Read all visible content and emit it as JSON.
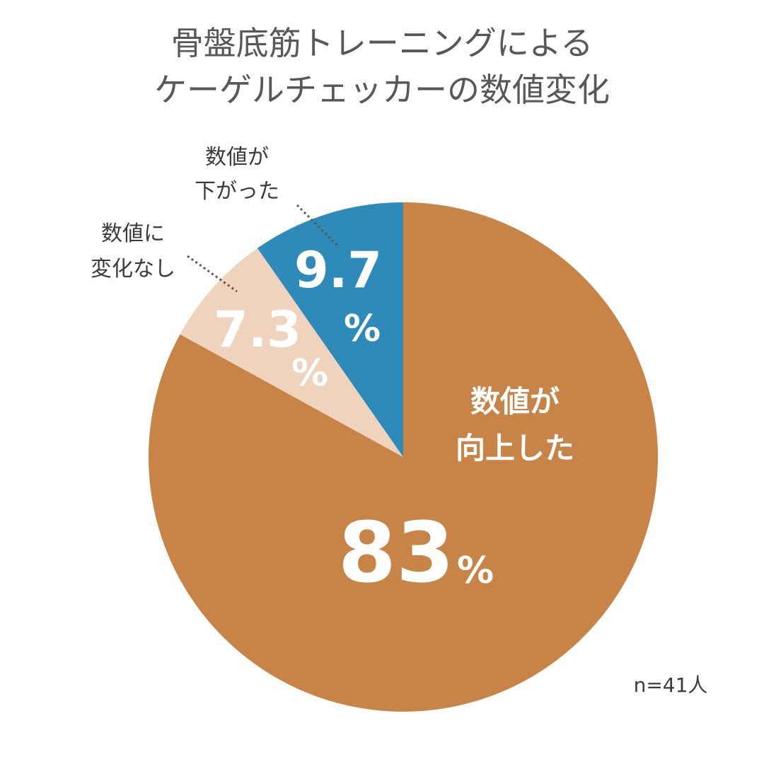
{
  "title_lines": [
    "骨盤底筋トレーニングによる",
    "ケーゲルチェッカーの数値変化"
  ],
  "chart_data": {
    "type": "pie",
    "title": "骨盤底筋トレーニングによるケーゲルチェッカーの数値変化",
    "unit": "%",
    "slices": [
      {
        "label_lines": [
          "数値が",
          "向上した"
        ],
        "value": 83,
        "value_text": "83",
        "color": "#c88346"
      },
      {
        "label_lines": [
          "数値に",
          "変化なし"
        ],
        "value": 7.3,
        "value_text": "7.3",
        "color": "#efd3bd"
      },
      {
        "label_lines": [
          "数値が",
          "下がった"
        ],
        "value": 9.7,
        "value_text": "9.7",
        "color": "#2e8ab9"
      }
    ],
    "start": "12 o'clock",
    "direction": "clockwise",
    "sample_note": "n=41人"
  },
  "colors": {
    "title_text": "#595757",
    "callout_text": "#3e3a39",
    "inside_text": "#ffffff",
    "leader_line": "#595757"
  }
}
